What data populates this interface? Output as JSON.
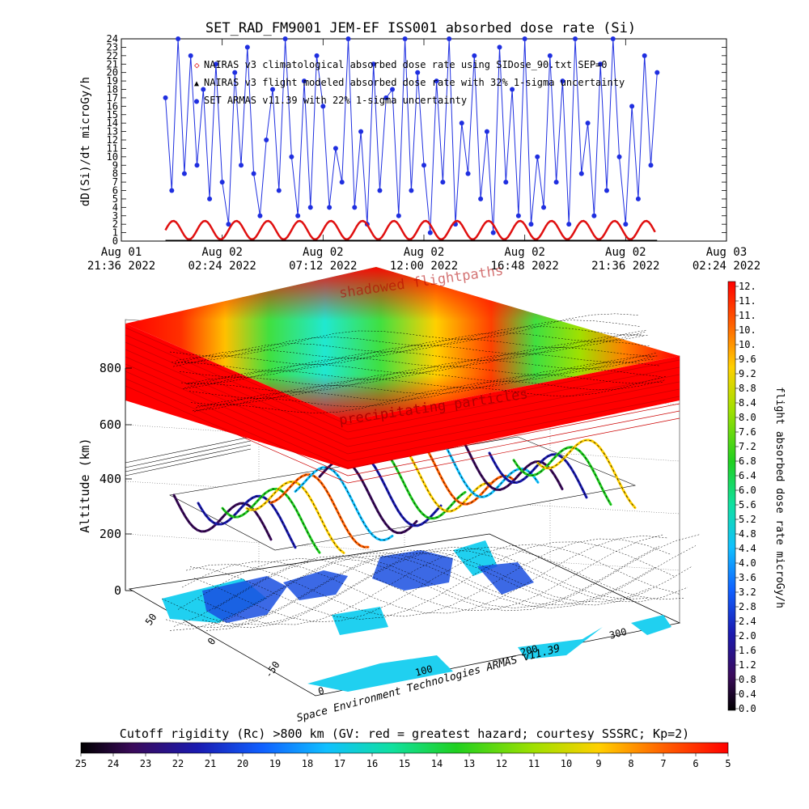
{
  "chart_data": [
    {
      "type": "line",
      "title": "SET_RAD_FM9001  JEM-EF ISS001 absorbed dose rate (Si)",
      "ylabel": "dD(Si)/dt microGy/h",
      "ylim": [
        0,
        24
      ],
      "yticks": [
        "0",
        "1",
        "2",
        "3",
        "4",
        "5",
        "6",
        "7",
        "8",
        "9",
        "10",
        "11",
        "12",
        "13",
        "14",
        "15",
        "16",
        "17",
        "18",
        "19",
        "20",
        "21",
        "22",
        "23",
        "24"
      ],
      "xticks": [
        {
          "line1": "Aug 01",
          "line2": "21:36 2022"
        },
        {
          "line1": "Aug 02",
          "line2": "02:24 2022"
        },
        {
          "line1": "Aug 02",
          "line2": "07:12 2022"
        },
        {
          "line1": "Aug 02",
          "line2": "12:00 2022"
        },
        {
          "line1": "Aug 02",
          "line2": "16:48 2022"
        },
        {
          "line1": "Aug 02",
          "line2": "21:36 2022"
        },
        {
          "line1": "Aug 03",
          "line2": "02:24 2022"
        }
      ],
      "legend": [
        "NAIRAS v3 climatological absorbed dose rate using SIDose_90.txt SEP=0",
        "NAIRAS v3 flight modeled absorbed dose rate with 32% 1-sigma uncertainty",
        "SET ARMAS v11.39 with 22% 1-sigma uncertainty"
      ],
      "series": [
        {
          "name": "SET ARMAS v11.39 with 22% 1-sigma uncertainty",
          "color": "#1f2fe0",
          "x_hours": [
            0.0,
            0.3,
            0.6,
            0.9,
            1.2,
            1.5,
            1.8,
            2.1,
            2.4,
            2.7,
            3.0,
            3.3,
            3.6,
            3.9,
            4.2,
            4.5,
            4.8,
            5.1,
            5.4,
            5.7,
            6.0,
            6.3,
            6.6,
            6.9,
            7.2,
            7.5,
            7.8,
            8.1,
            8.4,
            8.7,
            9.0,
            9.3,
            9.6,
            9.9,
            10.2,
            10.5,
            10.8,
            11.1,
            11.4,
            11.7,
            12.0,
            12.3,
            12.6,
            12.9,
            13.2,
            13.5,
            13.8,
            14.1,
            14.4,
            14.7,
            15.0,
            15.3,
            15.6,
            15.9,
            16.2,
            16.5,
            16.8,
            17.1,
            17.4,
            17.7,
            18.0,
            18.3,
            18.6,
            18.9,
            19.2,
            19.5,
            19.8,
            20.1,
            20.4,
            20.7,
            21.0,
            21.3,
            21.6,
            21.9,
            22.2,
            22.5,
            22.8,
            23.1,
            23.4
          ],
          "values": [
            17,
            6,
            24,
            8,
            22,
            9,
            18,
            5,
            21,
            7,
            2,
            20,
            9,
            23,
            8,
            3,
            12,
            18,
            6,
            24,
            10,
            3,
            19,
            4,
            22,
            16,
            4,
            11,
            7,
            24,
            4,
            13,
            2,
            21,
            6,
            17,
            18,
            3,
            24,
            6,
            20,
            9,
            1,
            19,
            7,
            24,
            2,
            14,
            8,
            22,
            5,
            13,
            1,
            23,
            7,
            18,
            3,
            24,
            2,
            10,
            4,
            22,
            7,
            19,
            2,
            24,
            8,
            14,
            3,
            21,
            6,
            24,
            10,
            2,
            16,
            5,
            22,
            9,
            20
          ]
        },
        {
          "name": "NAIRAS v3 climatological absorbed dose rate using SIDose_90.txt SEP=0",
          "color": "#e01010",
          "note": "oscillates between about 0.2 and 2.4 microGy/h, roughly a 1.5 h orbital period"
        },
        {
          "name": "NAIRAS v3 flight modeled absorbed dose rate with 32% 1-sigma uncertainty",
          "color": "#000000",
          "note": "near 0 microGy/h throughout"
        }
      ]
    },
    {
      "type": "heatmap",
      "xlabel": "",
      "ylabel": "Altitude (km)",
      "zticks": [
        "0",
        "200",
        "400",
        "600",
        "800"
      ],
      "lon_ticks": [
        "0",
        "100",
        "200",
        "300"
      ],
      "lat_ticks": [
        "-50",
        "0",
        "50"
      ],
      "annotations": [
        "shadowed flightpaths",
        "precipitating particles"
      ],
      "credit": "Space Environment Technologies ARMAS v11.39",
      "colorbar_right": {
        "label": "flight absorbed dose rate microGy/h",
        "ticks": [
          "0.0",
          "0.4",
          "0.8",
          "1.2",
          "1.6",
          "2.0",
          "2.4",
          "2.8",
          "3.2",
          "3.6",
          "4.0",
          "4.4",
          "4.8",
          "5.2",
          "5.6",
          "6.0",
          "6.4",
          "6.8",
          "7.2",
          "7.6",
          "8.0",
          "8.4",
          "8.8",
          "9.2",
          "9.6",
          "10.",
          "10.",
          "11.",
          "11.",
          "12."
        ]
      },
      "colorbar_bottom": {
        "label": "Cutoff rigidity (Rc) >800 km (GV: red = greatest hazard; courtesy SSSRC; Kp=2)",
        "ticks": [
          "25",
          "24",
          "23",
          "22",
          "21",
          "20",
          "19",
          "18",
          "17",
          "16",
          "15",
          "14",
          "13",
          "12",
          "11",
          "10",
          "9",
          "8",
          "7",
          "6",
          "5"
        ]
      }
    }
  ]
}
